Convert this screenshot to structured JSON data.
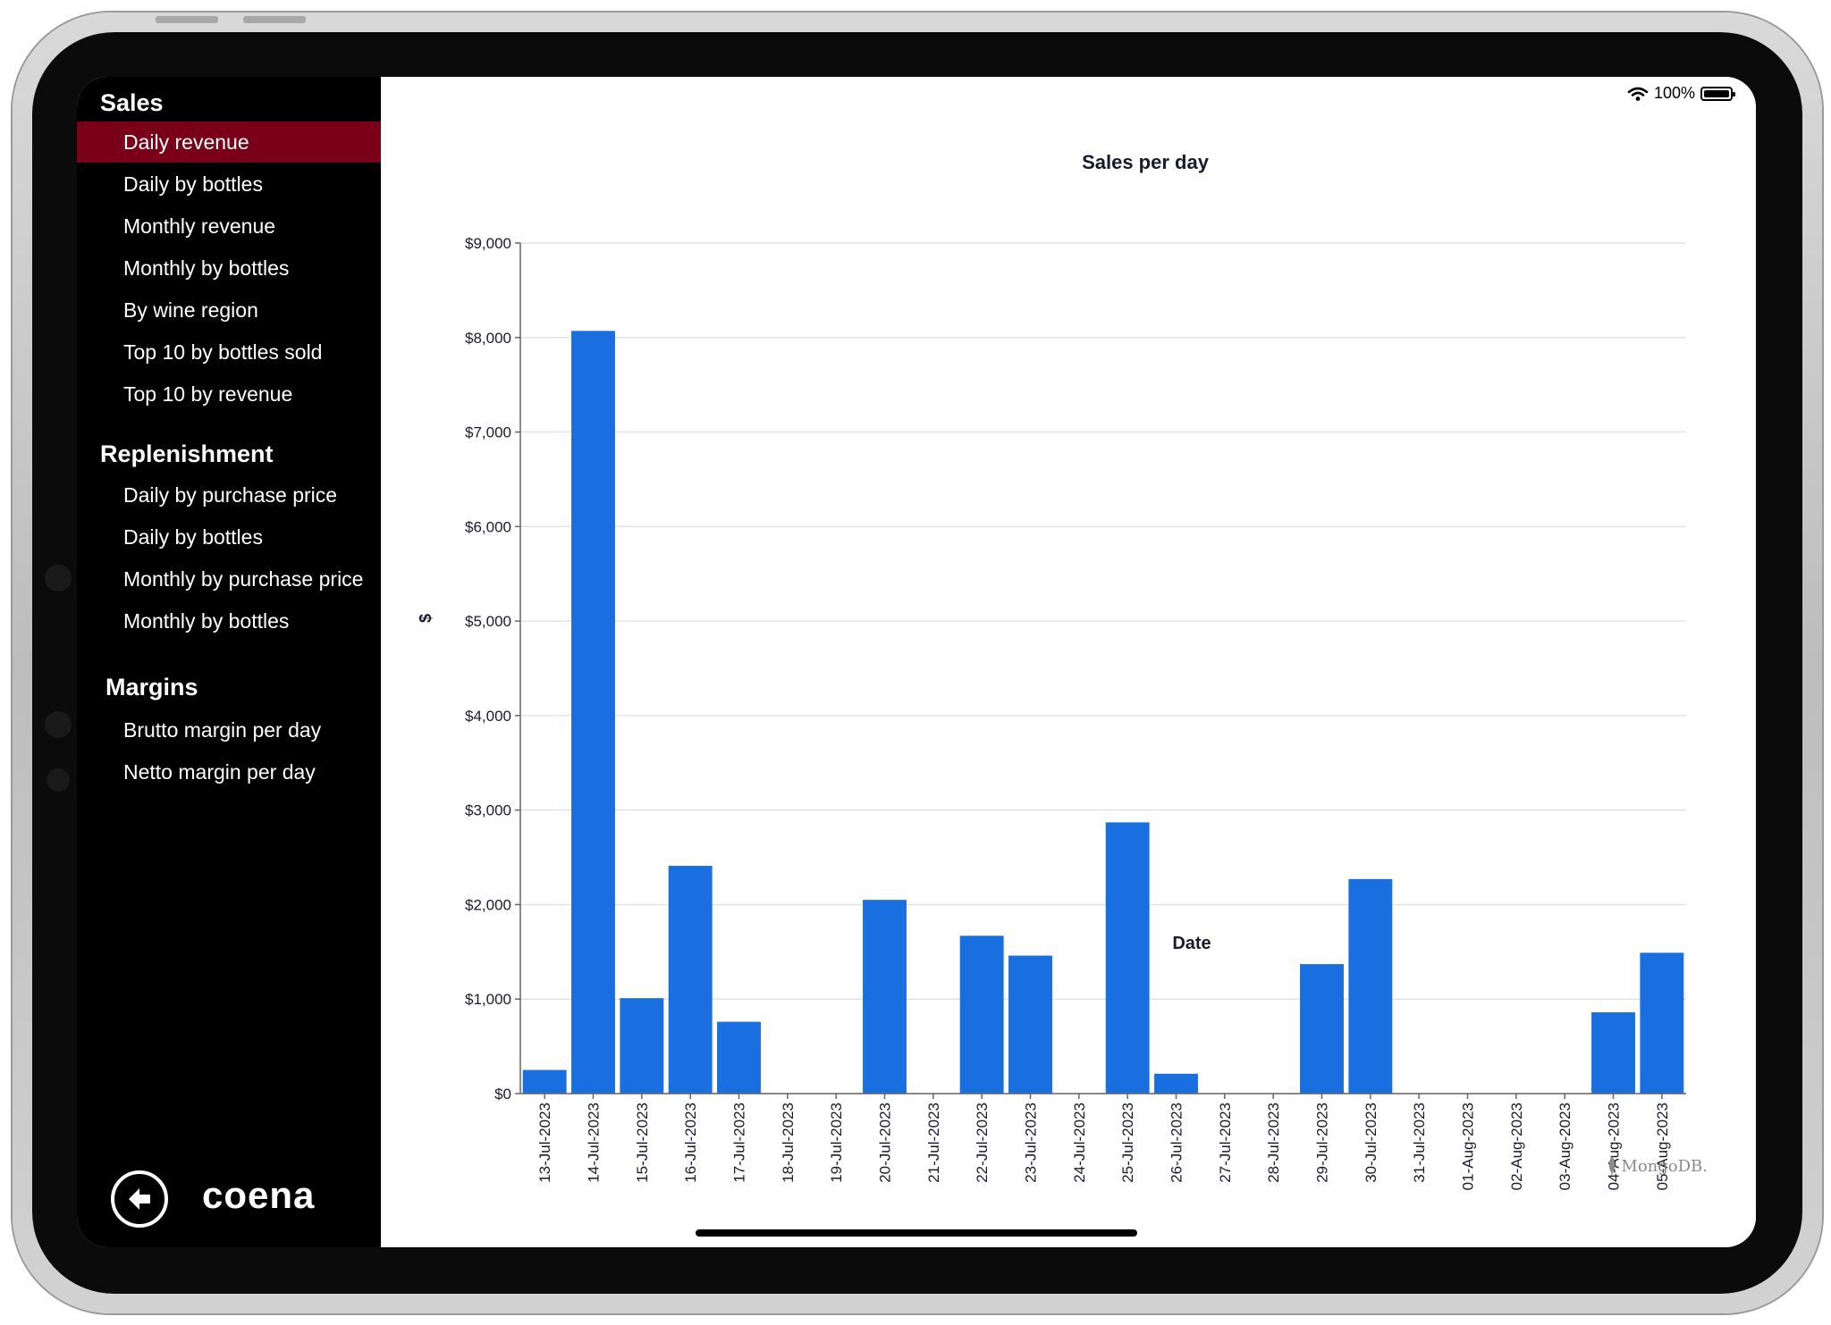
{
  "sidebar": {
    "sections": [
      {
        "title": "Sales",
        "items": [
          "Daily revenue",
          "Daily by bottles",
          "Monthly revenue",
          "Monthly by bottles",
          "By wine region",
          "Top 10 by bottles sold",
          "Top 10 by revenue"
        ]
      },
      {
        "title": "Replenishment",
        "items": [
          "Daily by purchase price",
          "Daily by bottles",
          "Monthly by purchase price",
          "Monthly by bottles"
        ]
      },
      {
        "title": "Margins",
        "items": [
          "Brutto margin per day",
          "Netto margin per day"
        ]
      }
    ],
    "active_item": "Daily revenue",
    "active_color": "#7a0019",
    "back_icon": "arrow-left-circle-icon",
    "logo_text": "coena"
  },
  "status_bar": {
    "battery_text": "100%",
    "wifi_icon": "wifi-icon",
    "battery_icon": "battery-full-icon"
  },
  "watermark": {
    "text": "MongoDB.",
    "icon": "mongodb-leaf-icon"
  },
  "chart_data": {
    "type": "bar",
    "title": "Sales per day",
    "xlabel": "Date",
    "ylabel": "$",
    "ylim": [
      0,
      9000
    ],
    "y_ticks": [
      "$0",
      "$1,000",
      "$2,000",
      "$3,000",
      "$4,000",
      "$5,000",
      "$6,000",
      "$7,000",
      "$8,000",
      "$9,000"
    ],
    "grid": true,
    "bar_color": "#1a6fe0",
    "categories": [
      "13-Jul-2023",
      "14-Jul-2023",
      "15-Jul-2023",
      "16-Jul-2023",
      "17-Jul-2023",
      "18-Jul-2023",
      "19-Jul-2023",
      "20-Jul-2023",
      "21-Jul-2023",
      "22-Jul-2023",
      "23-Jul-2023",
      "24-Jul-2023",
      "25-Jul-2023",
      "26-Jul-2023",
      "27-Jul-2023",
      "28-Jul-2023",
      "29-Jul-2023",
      "30-Jul-2023",
      "31-Jul-2023",
      "01-Aug-2023",
      "02-Aug-2023",
      "03-Aug-2023",
      "04-Aug-2023",
      "05-Aug-2023"
    ],
    "values": [
      250,
      8070,
      1010,
      2410,
      760,
      0,
      0,
      2050,
      0,
      1670,
      1460,
      0,
      2870,
      210,
      0,
      0,
      1370,
      2270,
      0,
      0,
      0,
      0,
      860,
      1490
    ]
  }
}
